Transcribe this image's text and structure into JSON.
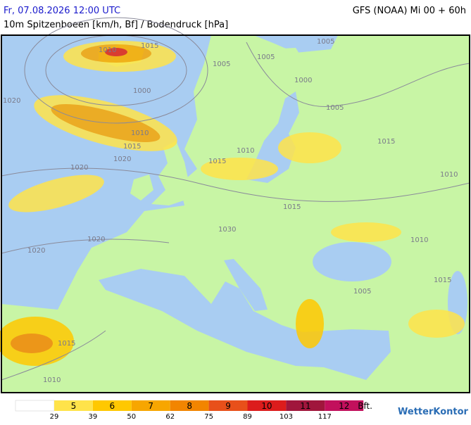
{
  "header": {
    "left": "Fr, 07.08.2026 12:00 UTC",
    "right": "GFS (NOAA) Mi 00 + 60h",
    "subtitle": "10m Spitzenboeen [km/h, Bf] / Bodendruck [hPa]"
  },
  "map": {
    "isobar_labels": [
      "1010",
      "1015",
      "1005",
      "1005",
      "1005",
      "1000",
      "1000",
      "1020",
      "1005",
      "1010",
      "1015",
      "1020",
      "1010",
      "1015",
      "1015",
      "1020",
      "1010",
      "1015",
      "1030",
      "1020",
      "1020",
      "1010",
      "1015",
      "1005",
      "1015",
      "1010"
    ]
  },
  "legend": {
    "bft": [
      {
        "label": "5",
        "color": "#ffe34a"
      },
      {
        "label": "6",
        "color": "#ffc800"
      },
      {
        "label": "7",
        "color": "#f7a600"
      },
      {
        "label": "8",
        "color": "#f28500"
      },
      {
        "label": "9",
        "color": "#e8501a"
      },
      {
        "label": "10",
        "color": "#dc1c1c"
      },
      {
        "label": "11",
        "color": "#a0163c"
      },
      {
        "label": "12",
        "color": "#c2105c"
      }
    ],
    "unit": "Bft.",
    "kmh": [
      "29",
      "39",
      "50",
      "62",
      "75",
      "89",
      "103",
      "117"
    ]
  },
  "brand": "WetterKontor"
}
